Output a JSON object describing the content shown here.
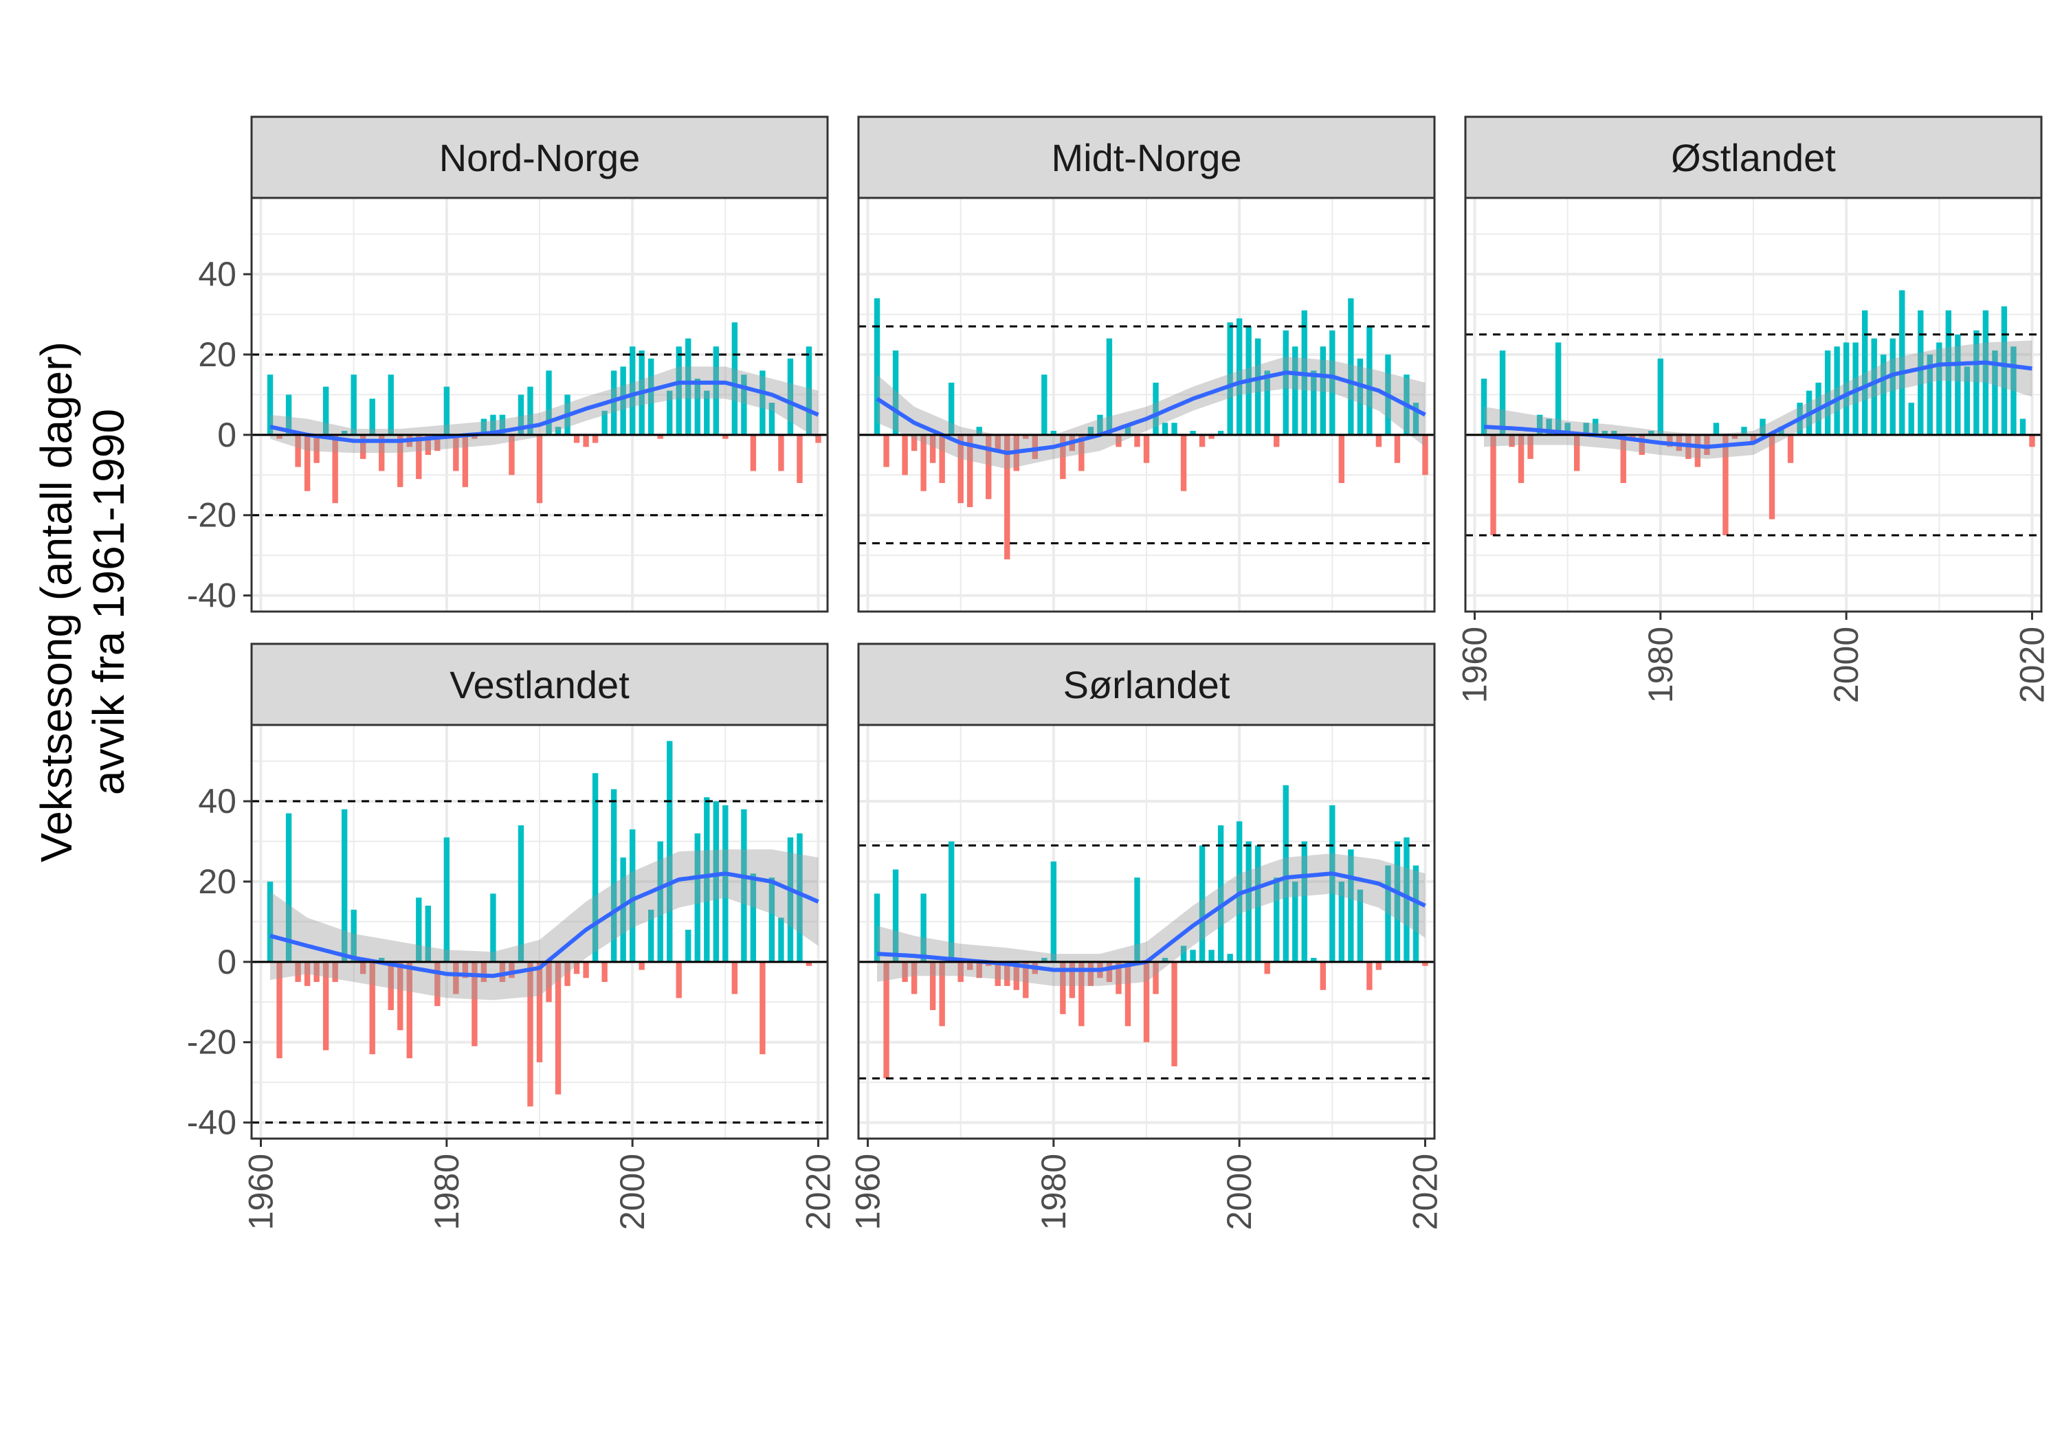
{
  "colors": {
    "positive": "#00BFC4",
    "negative": "#F8766D",
    "smooth": "#3366FF",
    "ribbon": "#999999",
    "strip": "#D9D9D9",
    "grid": "#EBEBEB",
    "frame": "#333333"
  },
  "y_axis": {
    "title_line1": "Vekstsesong (antall dager)",
    "title_line2": "avvik fra 1961-1990"
  },
  "chart_data": [
    {
      "type": "bar",
      "panel": "Nord-Norge",
      "xlim": [
        1959,
        2021
      ],
      "ylim": [
        -44,
        59
      ],
      "xticks": [
        1960,
        1980,
        2000,
        2020
      ],
      "yticks": [
        -40,
        -20,
        0,
        20,
        40
      ],
      "threshold": 20,
      "years_start": 1961,
      "values": [
        15,
        -1,
        10,
        -8,
        -14,
        -7,
        12,
        -17,
        1,
        15,
        -6,
        9,
        -9,
        15,
        -13,
        -3,
        -11,
        -5,
        -4,
        12,
        -9,
        -13,
        -1,
        4,
        5,
        5,
        -10,
        10,
        12,
        -17,
        16,
        2,
        10,
        -2,
        -3,
        -2,
        6,
        16,
        17,
        22,
        21,
        19,
        -1,
        11,
        22,
        24,
        14,
        11,
        22,
        -1,
        28,
        15,
        -9,
        16,
        8,
        -9,
        19,
        -12,
        22,
        -2
      ],
      "smooth": [
        [
          1961,
          2
        ],
        [
          1965,
          0
        ],
        [
          1970,
          -1.5
        ],
        [
          1975,
          -1.5
        ],
        [
          1980,
          -0.5
        ],
        [
          1985,
          0.5
        ],
        [
          1990,
          2.5
        ],
        [
          1995,
          6.5
        ],
        [
          2000,
          10
        ],
        [
          2005,
          13
        ],
        [
          2010,
          13
        ],
        [
          2015,
          10
        ],
        [
          2020,
          5
        ]
      ],
      "band": [
        3,
        4,
        3,
        3,
        3,
        3,
        3,
        3,
        3,
        4,
        4,
        4,
        6
      ]
    },
    {
      "type": "bar",
      "panel": "Midt-Norge",
      "xlim": [
        1959,
        2021
      ],
      "ylim": [
        -44,
        59
      ],
      "xticks": [
        1960,
        1980,
        2000,
        2020
      ],
      "yticks": [
        -40,
        -20,
        0,
        20,
        40
      ],
      "threshold": 27,
      "years_start": 1961,
      "values": [
        34,
        -8,
        21,
        -10,
        -4,
        -14,
        -7,
        -12,
        13,
        -17,
        -18,
        2,
        -16,
        -4,
        -31,
        -9,
        -1,
        -6,
        15,
        1,
        -11,
        -4,
        -9,
        2,
        5,
        24,
        -3,
        2,
        -3,
        -7,
        13,
        3,
        3,
        -14,
        1,
        -3,
        -1,
        1,
        28,
        29,
        27,
        24,
        16,
        -3,
        26,
        22,
        31,
        16,
        22,
        26,
        -12,
        34,
        19,
        27,
        -3,
        20,
        -7,
        15,
        8,
        -10
      ],
      "smooth": [
        [
          1961,
          9
        ],
        [
          1965,
          3
        ],
        [
          1970,
          -2
        ],
        [
          1975,
          -4.5
        ],
        [
          1980,
          -3
        ],
        [
          1985,
          0
        ],
        [
          1990,
          4
        ],
        [
          1995,
          9
        ],
        [
          2000,
          13
        ],
        [
          2005,
          15.5
        ],
        [
          2010,
          14.5
        ],
        [
          2015,
          11
        ],
        [
          2020,
          5
        ]
      ],
      "band": [
        6,
        4,
        4,
        4,
        3,
        4,
        3,
        3,
        3,
        4,
        4,
        5,
        8
      ]
    },
    {
      "type": "bar",
      "panel": "Østlandet",
      "xlim": [
        1959,
        2021
      ],
      "ylim": [
        -44,
        59
      ],
      "xticks": [
        1960,
        1980,
        2000,
        2020
      ],
      "yticks": [
        -40,
        -20,
        0,
        20,
        40
      ],
      "threshold": 25,
      "years_start": 1961,
      "values": [
        14,
        -25,
        21,
        -3,
        -12,
        -6,
        5,
        4,
        23,
        3,
        -9,
        3,
        4,
        1,
        1,
        -12,
        -1,
        -5,
        1,
        19,
        -3,
        -4,
        -6,
        -8,
        -5,
        3,
        -25,
        -1,
        2,
        -2,
        4,
        -21,
        2,
        -7,
        8,
        11,
        13,
        21,
        22,
        23,
        23,
        31,
        24,
        20,
        24,
        36,
        8,
        31,
        20,
        23,
        31,
        25,
        17,
        26,
        31,
        21,
        32,
        22,
        4,
        -3
      ],
      "smooth": [
        [
          1961,
          2
        ],
        [
          1965,
          1.5
        ],
        [
          1970,
          0.5
        ],
        [
          1975,
          -0.5
        ],
        [
          1980,
          -2
        ],
        [
          1985,
          -3
        ],
        [
          1990,
          -2
        ],
        [
          1995,
          4
        ],
        [
          2000,
          10
        ],
        [
          2005,
          15
        ],
        [
          2010,
          17.5
        ],
        [
          2015,
          18
        ],
        [
          2020,
          16.5
        ]
      ],
      "band": [
        5,
        4,
        3,
        3,
        3,
        3,
        3,
        3,
        3,
        4,
        4,
        5,
        7
      ]
    },
    {
      "type": "bar",
      "panel": "Vestlandet",
      "xlim": [
        1959,
        2021
      ],
      "ylim": [
        -44,
        59
      ],
      "xticks": [
        1960,
        1980,
        2000,
        2020
      ],
      "yticks": [
        -40,
        -20,
        0,
        20,
        40
      ],
      "threshold": 40,
      "years_start": 1961,
      "values": [
        20,
        -24,
        37,
        -5,
        -6,
        -5,
        -22,
        -5,
        38,
        13,
        -3,
        -23,
        1,
        -12,
        -17,
        -24,
        16,
        14,
        -11,
        31,
        -8,
        -4,
        -21,
        -5,
        17,
        -5,
        -4,
        34,
        -36,
        -25,
        -10,
        -33,
        -6,
        -3,
        -4,
        47,
        -5,
        43,
        26,
        33,
        -2,
        13,
        30,
        55,
        -9,
        8,
        32,
        41,
        40,
        39,
        -8,
        38,
        22,
        -23,
        21,
        11,
        31,
        32,
        -1
      ],
      "smooth": [
        [
          1961,
          6.5
        ],
        [
          1965,
          4
        ],
        [
          1970,
          1
        ],
        [
          1975,
          -1
        ],
        [
          1980,
          -3
        ],
        [
          1985,
          -3.5
        ],
        [
          1990,
          -1.5
        ],
        [
          1995,
          8
        ],
        [
          2000,
          15.5
        ],
        [
          2005,
          20.5
        ],
        [
          2010,
          22
        ],
        [
          2015,
          20
        ],
        [
          2020,
          15
        ]
      ],
      "band": [
        11,
        7,
        6,
        6,
        6,
        6,
        7,
        7,
        7,
        7,
        6,
        8,
        11
      ]
    },
    {
      "type": "bar",
      "panel": "Sørlandet",
      "xlim": [
        1959,
        2021
      ],
      "ylim": [
        -44,
        59
      ],
      "xticks": [
        1960,
        1980,
        2000,
        2020
      ],
      "yticks": [
        -40,
        -20,
        0,
        20,
        40
      ],
      "threshold": 29,
      "years_start": 1961,
      "values": [
        17,
        -29,
        23,
        -5,
        -8,
        17,
        -12,
        -16,
        30,
        -5,
        -2,
        -4,
        -1,
        -6,
        -6,
        -7,
        -9,
        -3,
        1,
        25,
        -13,
        -9,
        -16,
        -6,
        -4,
        -5,
        -8,
        -16,
        21,
        -20,
        -8,
        1,
        -26,
        4,
        3,
        29,
        3,
        34,
        2,
        35,
        30,
        29,
        -3,
        21,
        44,
        20,
        30,
        1,
        -7,
        39,
        20,
        28,
        18,
        -7,
        -2,
        24,
        30,
        31,
        24,
        -1
      ],
      "smooth": [
        [
          1961,
          2
        ],
        [
          1965,
          1.5
        ],
        [
          1970,
          0.5
        ],
        [
          1975,
          -0.5
        ],
        [
          1980,
          -2
        ],
        [
          1985,
          -2
        ],
        [
          1990,
          0
        ],
        [
          1995,
          9
        ],
        [
          2000,
          17
        ],
        [
          2005,
          21
        ],
        [
          2010,
          22
        ],
        [
          2015,
          19.5
        ],
        [
          2020,
          14
        ]
      ],
      "band": [
        7,
        5,
        4,
        4,
        4,
        4,
        5,
        5,
        5,
        5,
        5,
        6,
        8
      ]
    }
  ]
}
